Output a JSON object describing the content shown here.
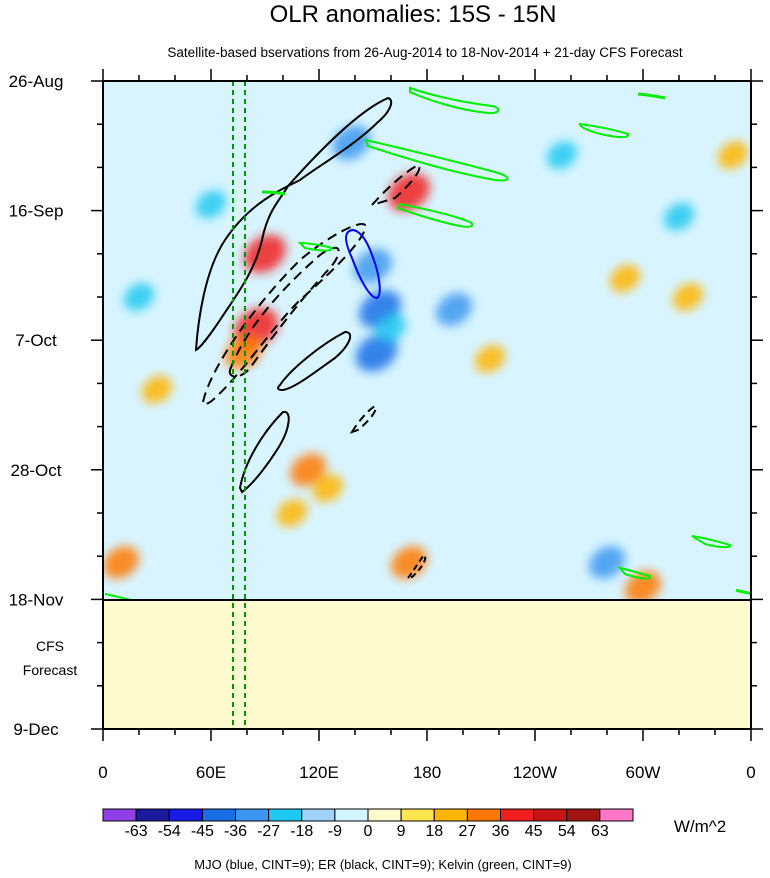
{
  "title": "OLR anomalies: 15S - 15N",
  "subtitle": "Satellite-based bservations from 26-Aug-2014 to 18-Nov-2014 + 21-day CFS Forecast",
  "forecast_label_line1": "CFS",
  "forecast_label_line2": "Forecast",
  "colorbar_units": "W/m^2",
  "footer": "MJO (blue, CINT=9); ER (black, CINT=9); Kelvin (green, CINT=9)",
  "colors": {
    "forecast_fill": "#fffacd",
    "mjo": "#0000ff",
    "er": "#000000",
    "kelvin": "#00ee00",
    "ref_lines": "#00a000",
    "palette": [
      "#8e3fe6",
      "#1a1a9e",
      "#1a1ae6",
      "#1a6ee6",
      "#3c96f0",
      "#1ec8f0",
      "#a0d2fa",
      "#d2f5ff",
      "#fffacd",
      "#ffe650",
      "#ffb400",
      "#ff7800",
      "#f01e1e",
      "#c81414",
      "#a01414",
      "#ff78c8"
    ]
  },
  "chart_data": {
    "type": "heatmap",
    "title": "OLR anomalies: 15S - 15N",
    "subtitle": "Satellite-based bservations from 26-Aug-2014 to 18-Nov-2014 + 21-day CFS Forecast",
    "x_axis": {
      "ticks": [
        "0",
        "60E",
        "120E",
        "180",
        "120W",
        "60W",
        "0"
      ],
      "range_deg": [
        0,
        360
      ]
    },
    "y_axis": {
      "ticks": [
        "26-Aug",
        "16-Sep",
        "7-Oct",
        "28-Oct",
        "18-Nov",
        "9-Dec"
      ],
      "range_days": [
        0,
        105
      ],
      "reversed": true
    },
    "observation_end": "18-Nov",
    "forecast_end": "9-Dec",
    "colorbar": {
      "labels": [
        "-63",
        "-54",
        "-45",
        "-36",
        "-27",
        "-18",
        "-9",
        "0",
        "9",
        "18",
        "27",
        "36",
        "45",
        "54",
        "63"
      ],
      "units": "W/m^2"
    },
    "reference_longitudes_deg": [
      72,
      79
    ],
    "anomaly_features": [
      {
        "lon": 90,
        "day": 28,
        "value": 36
      },
      {
        "lon": 85,
        "day": 40,
        "value": 40
      },
      {
        "lon": 78,
        "day": 44,
        "value": 28
      },
      {
        "lon": 150,
        "day": 30,
        "value": -30
      },
      {
        "lon": 154,
        "day": 37,
        "value": -36
      },
      {
        "lon": 152,
        "day": 44,
        "value": -36
      },
      {
        "lon": 138,
        "day": 10,
        "value": -30
      },
      {
        "lon": 160,
        "day": 40,
        "value": -18
      },
      {
        "lon": 170,
        "day": 18,
        "value": 36
      },
      {
        "lon": 195,
        "day": 37,
        "value": -27
      },
      {
        "lon": 114,
        "day": 63,
        "value": 27
      },
      {
        "lon": 125,
        "day": 66,
        "value": 18
      },
      {
        "lon": 105,
        "day": 70,
        "value": 18
      },
      {
        "lon": 215,
        "day": 45,
        "value": 18
      },
      {
        "lon": 320,
        "day": 22,
        "value": -18
      },
      {
        "lon": 290,
        "day": 32,
        "value": 18
      },
      {
        "lon": 170,
        "day": 78,
        "value": 27
      },
      {
        "lon": 280,
        "day": 78,
        "value": -27
      },
      {
        "lon": 300,
        "day": 82,
        "value": 27
      },
      {
        "lon": 10,
        "day": 78,
        "value": 27
      },
      {
        "lon": 30,
        "day": 50,
        "value": 18
      },
      {
        "lon": 60,
        "day": 20,
        "value": -18
      },
      {
        "lon": 20,
        "day": 35,
        "value": -18
      },
      {
        "lon": 325,
        "day": 35,
        "value": 18
      },
      {
        "lon": 255,
        "day": 12,
        "value": -18
      },
      {
        "lon": 350,
        "day": 12,
        "value": 18
      }
    ]
  }
}
